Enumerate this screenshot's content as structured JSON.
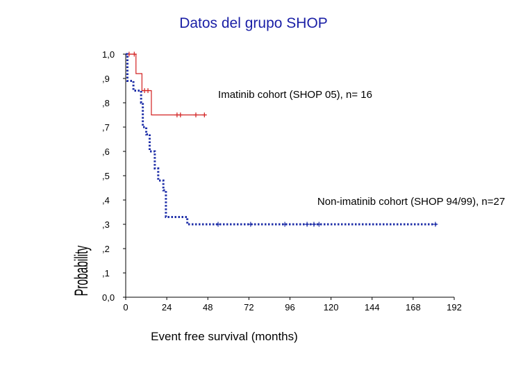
{
  "title": "Datos del grupo SHOP",
  "chart_data": {
    "type": "line",
    "subtype": "kaplan-meier step",
    "xlabel": "Event free survival (months)",
    "ylabel": "Probability",
    "xlim": [
      0,
      192
    ],
    "ylim": [
      0,
      1
    ],
    "x_ticks": [
      0,
      24,
      48,
      72,
      96,
      120,
      144,
      168,
      192
    ],
    "x_tick_labels": [
      "0",
      "24",
      "48",
      "72",
      "96",
      "120",
      "144",
      "168",
      "192"
    ],
    "y_ticks": [
      0,
      0.1,
      0.2,
      0.3,
      0.4,
      0.5,
      0.6,
      0.7,
      0.8,
      0.9,
      1.0
    ],
    "y_tick_labels": [
      "0,0",
      ",1",
      ",2",
      ",3",
      ",4",
      ",5",
      ",6",
      ",7",
      ",8",
      ",9",
      "1,0"
    ],
    "grid": false,
    "series": [
      {
        "name": "Imatinib cohort (SHOP 05), n= 16",
        "color": "#d22020",
        "style": "solid",
        "steps": [
          [
            0,
            1.0
          ],
          [
            6,
            0.92
          ],
          [
            9.5,
            0.85
          ],
          [
            15,
            0.75
          ],
          [
            47,
            0.75
          ]
        ],
        "censored": [
          [
            2,
            1.0
          ],
          [
            5,
            1.0
          ],
          [
            11,
            0.85
          ],
          [
            13,
            0.85
          ],
          [
            30,
            0.75
          ],
          [
            32,
            0.75
          ],
          [
            41,
            0.75
          ],
          [
            46,
            0.75
          ]
        ]
      },
      {
        "name": "Non-imatinib cohort (SHOP 94/99), n=27",
        "color": "#1f2fa8",
        "style": "dotted",
        "steps": [
          [
            0,
            1.0
          ],
          [
            1,
            0.89
          ],
          [
            4.5,
            0.85
          ],
          [
            9,
            0.8
          ],
          [
            10,
            0.7
          ],
          [
            12,
            0.67
          ],
          [
            14,
            0.6
          ],
          [
            17,
            0.53
          ],
          [
            19,
            0.48
          ],
          [
            22,
            0.44
          ],
          [
            23.5,
            0.33
          ],
          [
            36,
            0.3
          ],
          [
            182,
            0.3
          ]
        ],
        "censored": [
          [
            54,
            0.3
          ],
          [
            73,
            0.3
          ],
          [
            93,
            0.3
          ],
          [
            106,
            0.3
          ],
          [
            110,
            0.3
          ],
          [
            113,
            0.3
          ],
          [
            181,
            0.3
          ]
        ]
      }
    ],
    "annotations": [
      {
        "text": "Imatinib cohort (SHOP 05), n= 16",
        "x": 54,
        "y": 0.82
      },
      {
        "text": "Non-imatinib cohort (SHOP 94/99), n=27",
        "x": 112,
        "y": 0.38
      }
    ]
  }
}
